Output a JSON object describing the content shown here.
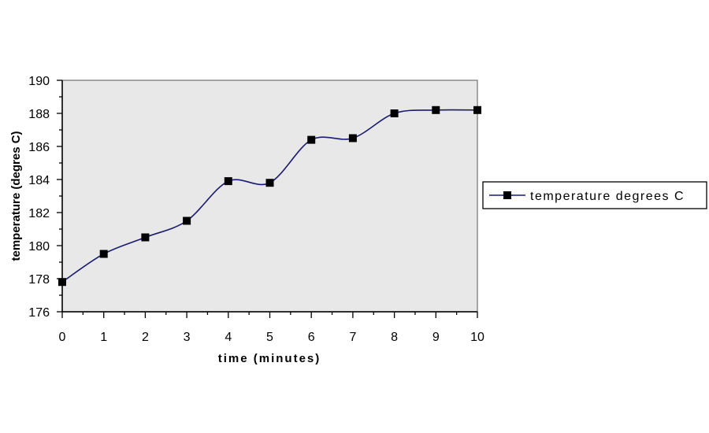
{
  "chart_data": {
    "type": "line",
    "title": "",
    "xlabel": "time (minutes)",
    "ylabel": "temperature (degres C)",
    "x": [
      0,
      1,
      2,
      3,
      4,
      5,
      6,
      7,
      8,
      9,
      10
    ],
    "series": [
      {
        "name": "temperature degrees C",
        "values": [
          177.8,
          179.5,
          180.5,
          181.5,
          183.9,
          183.8,
          186.4,
          186.5,
          188.0,
          188.2,
          188.2
        ],
        "color": "#1a1a6e",
        "marker": "square"
      }
    ],
    "xlim": [
      0,
      10
    ],
    "ylim": [
      176,
      190
    ],
    "xticks": [
      "0",
      "1",
      "2",
      "3",
      "4",
      "5",
      "6",
      "7",
      "8",
      "9",
      "10"
    ],
    "yticks": [
      "176",
      "178",
      "180",
      "182",
      "184",
      "186",
      "188",
      "190"
    ],
    "grid": false,
    "legend_position": "right",
    "plot_background": "#e8e8e8"
  }
}
